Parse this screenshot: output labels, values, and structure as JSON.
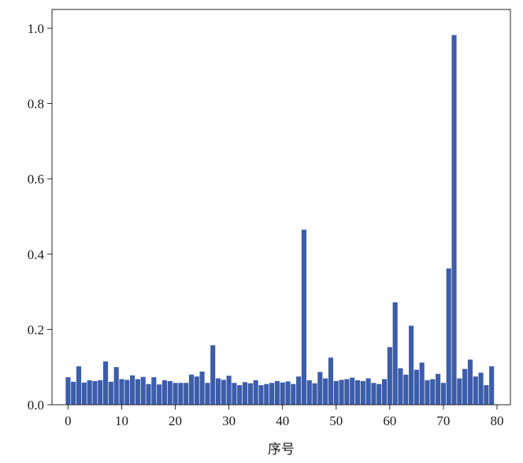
{
  "chart_data": {
    "type": "bar",
    "title": "",
    "xlabel": "序号",
    "ylabel": "",
    "xlim": [
      -3,
      82.5
    ],
    "ylim": [
      0,
      1.05
    ],
    "x_ticks": [
      0,
      10,
      20,
      30,
      40,
      50,
      60,
      70,
      80
    ],
    "y_ticks": [
      0.0,
      0.2,
      0.4,
      0.6,
      0.8,
      1.0
    ],
    "x_tick_labels": [
      "0",
      "10",
      "20",
      "30",
      "40",
      "50",
      "60",
      "70",
      "80"
    ],
    "y_tick_labels": [
      "0.0",
      "0.2",
      "0.4",
      "0.6",
      "0.8",
      "1.0"
    ],
    "grid": false,
    "legend": "none",
    "bar_color": "#3c5daa",
    "categories": [
      0,
      1,
      2,
      3,
      4,
      5,
      6,
      7,
      8,
      9,
      10,
      11,
      12,
      13,
      14,
      15,
      16,
      17,
      18,
      19,
      20,
      21,
      22,
      23,
      24,
      25,
      26,
      27,
      28,
      29,
      30,
      31,
      32,
      33,
      34,
      35,
      36,
      37,
      38,
      39,
      40,
      41,
      42,
      43,
      44,
      45,
      46,
      47,
      48,
      49,
      50,
      51,
      52,
      53,
      54,
      55,
      56,
      57,
      58,
      59,
      60,
      61,
      62,
      63,
      64,
      65,
      66,
      67,
      68,
      69,
      70,
      71,
      72,
      73,
      74,
      75,
      76,
      77,
      78,
      79
    ],
    "values": [
      0.073,
      0.061,
      0.102,
      0.059,
      0.065,
      0.063,
      0.065,
      0.115,
      0.061,
      0.1,
      0.068,
      0.066,
      0.078,
      0.068,
      0.074,
      0.055,
      0.073,
      0.054,
      0.065,
      0.063,
      0.058,
      0.058,
      0.058,
      0.08,
      0.075,
      0.088,
      0.058,
      0.158,
      0.07,
      0.066,
      0.077,
      0.058,
      0.052,
      0.06,
      0.057,
      0.065,
      0.052,
      0.055,
      0.058,
      0.063,
      0.059,
      0.062,
      0.055,
      0.075,
      0.465,
      0.065,
      0.057,
      0.087,
      0.07,
      0.125,
      0.063,
      0.066,
      0.068,
      0.072,
      0.065,
      0.063,
      0.07,
      0.058,
      0.055,
      0.068,
      0.153,
      0.272,
      0.097,
      0.08,
      0.21,
      0.093,
      0.112,
      0.065,
      0.068,
      0.082,
      0.058,
      0.362,
      0.982,
      0.07,
      0.095,
      0.12,
      0.075,
      0.085,
      0.052,
      0.102
    ]
  }
}
